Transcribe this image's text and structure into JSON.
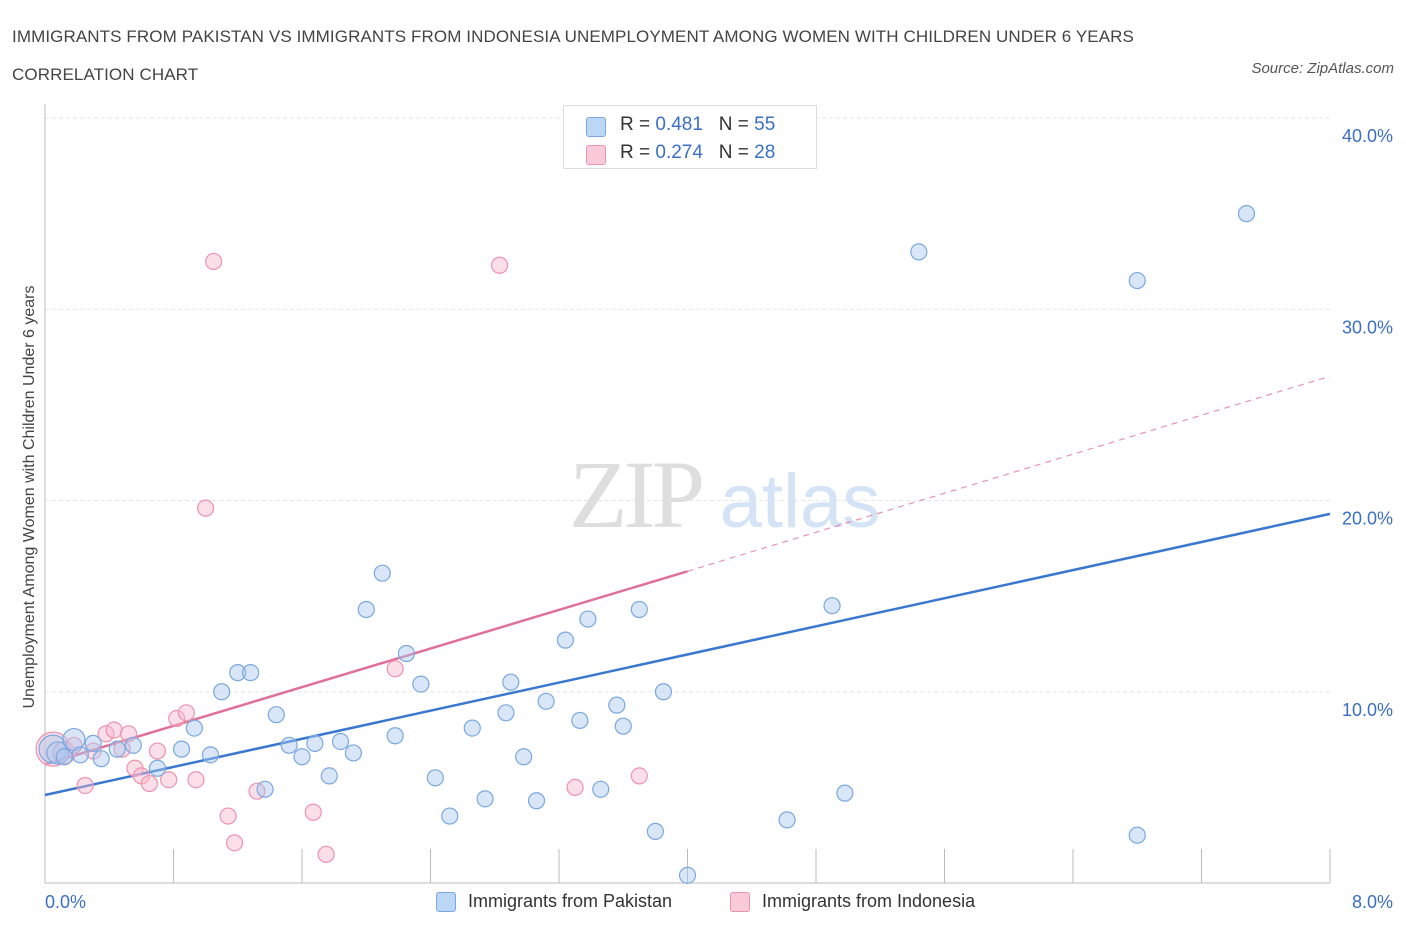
{
  "title": "IMMIGRANTS FROM PAKISTAN VS IMMIGRANTS FROM INDONESIA UNEMPLOYMENT AMONG WOMEN WITH CHILDREN UNDER 6 YEARS CORRELATION CHART",
  "source": "Source: ZipAtlas.com",
  "watermark": {
    "zip": "ZIP",
    "atlas": "atlas"
  },
  "legend": {
    "pakistan": {
      "r_label": "R = ",
      "r_value": "0.481",
      "n_label": "N = ",
      "n_value": "55"
    },
    "indonesia": {
      "r_label": "R = ",
      "r_value": "0.274",
      "n_label": "N = ",
      "n_value": "28"
    }
  },
  "colors": {
    "pakistan_fill": "#a8c8f0",
    "pakistan_stroke": "#7aa8e0",
    "pakistan_line": "#3a78d0",
    "indonesia_fill": "#f7b8cc",
    "indonesia_stroke": "#ee92ae",
    "indonesia_line": "#e0709a",
    "tick_label": "#3a6fc4",
    "grid": "#e6e6e6"
  },
  "chart_data": {
    "type": "scatter",
    "title": "IMMIGRANTS FROM PAKISTAN VS IMMIGRANTS FROM INDONESIA UNEMPLOYMENT AMONG WOMEN WITH CHILDREN UNDER 6 YEARS CORRELATION CHART",
    "xlabel": "",
    "ylabel": "Unemployment Among Women with Children Under 6 years",
    "xlim": [
      0,
      8
    ],
    "ylim": [
      0,
      40
    ],
    "x_tick_labels": [
      "0.0%",
      "8.0%"
    ],
    "y_ticks": [
      10,
      20,
      30,
      40
    ],
    "y_tick_labels": [
      "10.0%",
      "20.0%",
      "30.0%",
      "40.0%"
    ],
    "grid": true,
    "legend_position": "top-center",
    "series": [
      {
        "name": "Immigrants from Pakistan",
        "trend": {
          "x": [
            0,
            8
          ],
          "y": [
            4.6,
            19.3
          ],
          "dashed_extension": false
        },
        "points": [
          {
            "x": 0.05,
            "y": 7.0,
            "s": 3
          },
          {
            "x": 0.08,
            "y": 6.8,
            "s": 2
          },
          {
            "x": 0.12,
            "y": 6.6,
            "s": 1
          },
          {
            "x": 0.18,
            "y": 7.5,
            "s": 2
          },
          {
            "x": 0.22,
            "y": 6.7,
            "s": 1
          },
          {
            "x": 0.3,
            "y": 7.3,
            "s": 1
          },
          {
            "x": 0.35,
            "y": 6.5,
            "s": 1
          },
          {
            "x": 0.45,
            "y": 7.0,
            "s": 1
          },
          {
            "x": 0.55,
            "y": 7.2,
            "s": 1
          },
          {
            "x": 0.7,
            "y": 6.0,
            "s": 1
          },
          {
            "x": 0.85,
            "y": 7.0,
            "s": 1
          },
          {
            "x": 0.93,
            "y": 8.1,
            "s": 1
          },
          {
            "x": 1.03,
            "y": 6.7,
            "s": 1
          },
          {
            "x": 1.1,
            "y": 10.0,
            "s": 1
          },
          {
            "x": 1.2,
            "y": 11.0,
            "s": 1
          },
          {
            "x": 1.28,
            "y": 11.0,
            "s": 1
          },
          {
            "x": 1.37,
            "y": 4.9,
            "s": 1
          },
          {
            "x": 1.44,
            "y": 8.8,
            "s": 1
          },
          {
            "x": 1.52,
            "y": 7.2,
            "s": 1
          },
          {
            "x": 1.6,
            "y": 6.6,
            "s": 1
          },
          {
            "x": 1.68,
            "y": 7.3,
            "s": 1
          },
          {
            "x": 1.77,
            "y": 5.6,
            "s": 1
          },
          {
            "x": 1.84,
            "y": 7.4,
            "s": 1
          },
          {
            "x": 1.92,
            "y": 6.8,
            "s": 1
          },
          {
            "x": 2.0,
            "y": 14.3,
            "s": 1
          },
          {
            "x": 2.1,
            "y": 16.2,
            "s": 1
          },
          {
            "x": 2.18,
            "y": 7.7,
            "s": 1
          },
          {
            "x": 2.25,
            "y": 12.0,
            "s": 1
          },
          {
            "x": 2.34,
            "y": 10.4,
            "s": 1
          },
          {
            "x": 2.43,
            "y": 5.5,
            "s": 1
          },
          {
            "x": 2.52,
            "y": 3.5,
            "s": 1
          },
          {
            "x": 2.66,
            "y": 8.1,
            "s": 1
          },
          {
            "x": 2.74,
            "y": 4.4,
            "s": 1
          },
          {
            "x": 2.87,
            "y": 8.9,
            "s": 1
          },
          {
            "x": 2.9,
            "y": 10.5,
            "s": 1
          },
          {
            "x": 2.98,
            "y": 6.6,
            "s": 1
          },
          {
            "x": 3.06,
            "y": 4.3,
            "s": 1
          },
          {
            "x": 3.12,
            "y": 9.5,
            "s": 1
          },
          {
            "x": 3.24,
            "y": 12.7,
            "s": 1
          },
          {
            "x": 3.33,
            "y": 8.5,
            "s": 1
          },
          {
            "x": 3.38,
            "y": 13.8,
            "s": 1
          },
          {
            "x": 3.46,
            "y": 4.9,
            "s": 1
          },
          {
            "x": 3.56,
            "y": 9.3,
            "s": 1
          },
          {
            "x": 3.6,
            "y": 8.2,
            "s": 1
          },
          {
            "x": 3.7,
            "y": 14.3,
            "s": 1
          },
          {
            "x": 3.8,
            "y": 2.7,
            "s": 1
          },
          {
            "x": 3.85,
            "y": 10.0,
            "s": 1
          },
          {
            "x": 4.0,
            "y": 0.4,
            "s": 1
          },
          {
            "x": 4.62,
            "y": 3.3,
            "s": 1
          },
          {
            "x": 4.9,
            "y": 14.5,
            "s": 1
          },
          {
            "x": 4.98,
            "y": 4.7,
            "s": 1
          },
          {
            "x": 5.44,
            "y": 33.0,
            "s": 1
          },
          {
            "x": 6.8,
            "y": 31.5,
            "s": 1
          },
          {
            "x": 6.8,
            "y": 2.5,
            "s": 1
          },
          {
            "x": 7.48,
            "y": 35.0,
            "s": 1
          }
        ]
      },
      {
        "name": "Immigrants from Indonesia",
        "trend": {
          "x": [
            0,
            4.0
          ],
          "y": [
            6.2,
            16.3
          ],
          "dashed_extension": {
            "x": [
              4.0,
              8.0
            ],
            "y": [
              16.3,
              26.5
            ]
          }
        },
        "points": [
          {
            "x": 0.05,
            "y": 7.0,
            "s": 4
          },
          {
            "x": 0.12,
            "y": 6.8,
            "s": 2
          },
          {
            "x": 0.18,
            "y": 7.2,
            "s": 1
          },
          {
            "x": 0.25,
            "y": 5.1,
            "s": 1
          },
          {
            "x": 0.3,
            "y": 6.9,
            "s": 1
          },
          {
            "x": 0.38,
            "y": 7.8,
            "s": 1
          },
          {
            "x": 0.43,
            "y": 8.0,
            "s": 1
          },
          {
            "x": 0.48,
            "y": 7.0,
            "s": 1
          },
          {
            "x": 0.52,
            "y": 7.8,
            "s": 1
          },
          {
            "x": 0.56,
            "y": 6.0,
            "s": 1
          },
          {
            "x": 0.6,
            "y": 5.6,
            "s": 1
          },
          {
            "x": 0.65,
            "y": 5.2,
            "s": 1
          },
          {
            "x": 0.7,
            "y": 6.9,
            "s": 1
          },
          {
            "x": 0.77,
            "y": 5.4,
            "s": 1
          },
          {
            "x": 0.82,
            "y": 8.6,
            "s": 1
          },
          {
            "x": 0.88,
            "y": 8.9,
            "s": 1
          },
          {
            "x": 0.94,
            "y": 5.4,
            "s": 1
          },
          {
            "x": 1.0,
            "y": 19.6,
            "s": 1
          },
          {
            "x": 1.05,
            "y": 32.5,
            "s": 1
          },
          {
            "x": 1.14,
            "y": 3.5,
            "s": 1
          },
          {
            "x": 1.18,
            "y": 2.1,
            "s": 1
          },
          {
            "x": 1.32,
            "y": 4.8,
            "s": 1
          },
          {
            "x": 1.67,
            "y": 3.7,
            "s": 1
          },
          {
            "x": 1.75,
            "y": 1.5,
            "s": 1
          },
          {
            "x": 2.18,
            "y": 11.2,
            "s": 1
          },
          {
            "x": 2.83,
            "y": 32.3,
            "s": 1
          },
          {
            "x": 3.3,
            "y": 5.0,
            "s": 1
          },
          {
            "x": 3.7,
            "y": 5.6,
            "s": 1
          }
        ]
      }
    ]
  }
}
